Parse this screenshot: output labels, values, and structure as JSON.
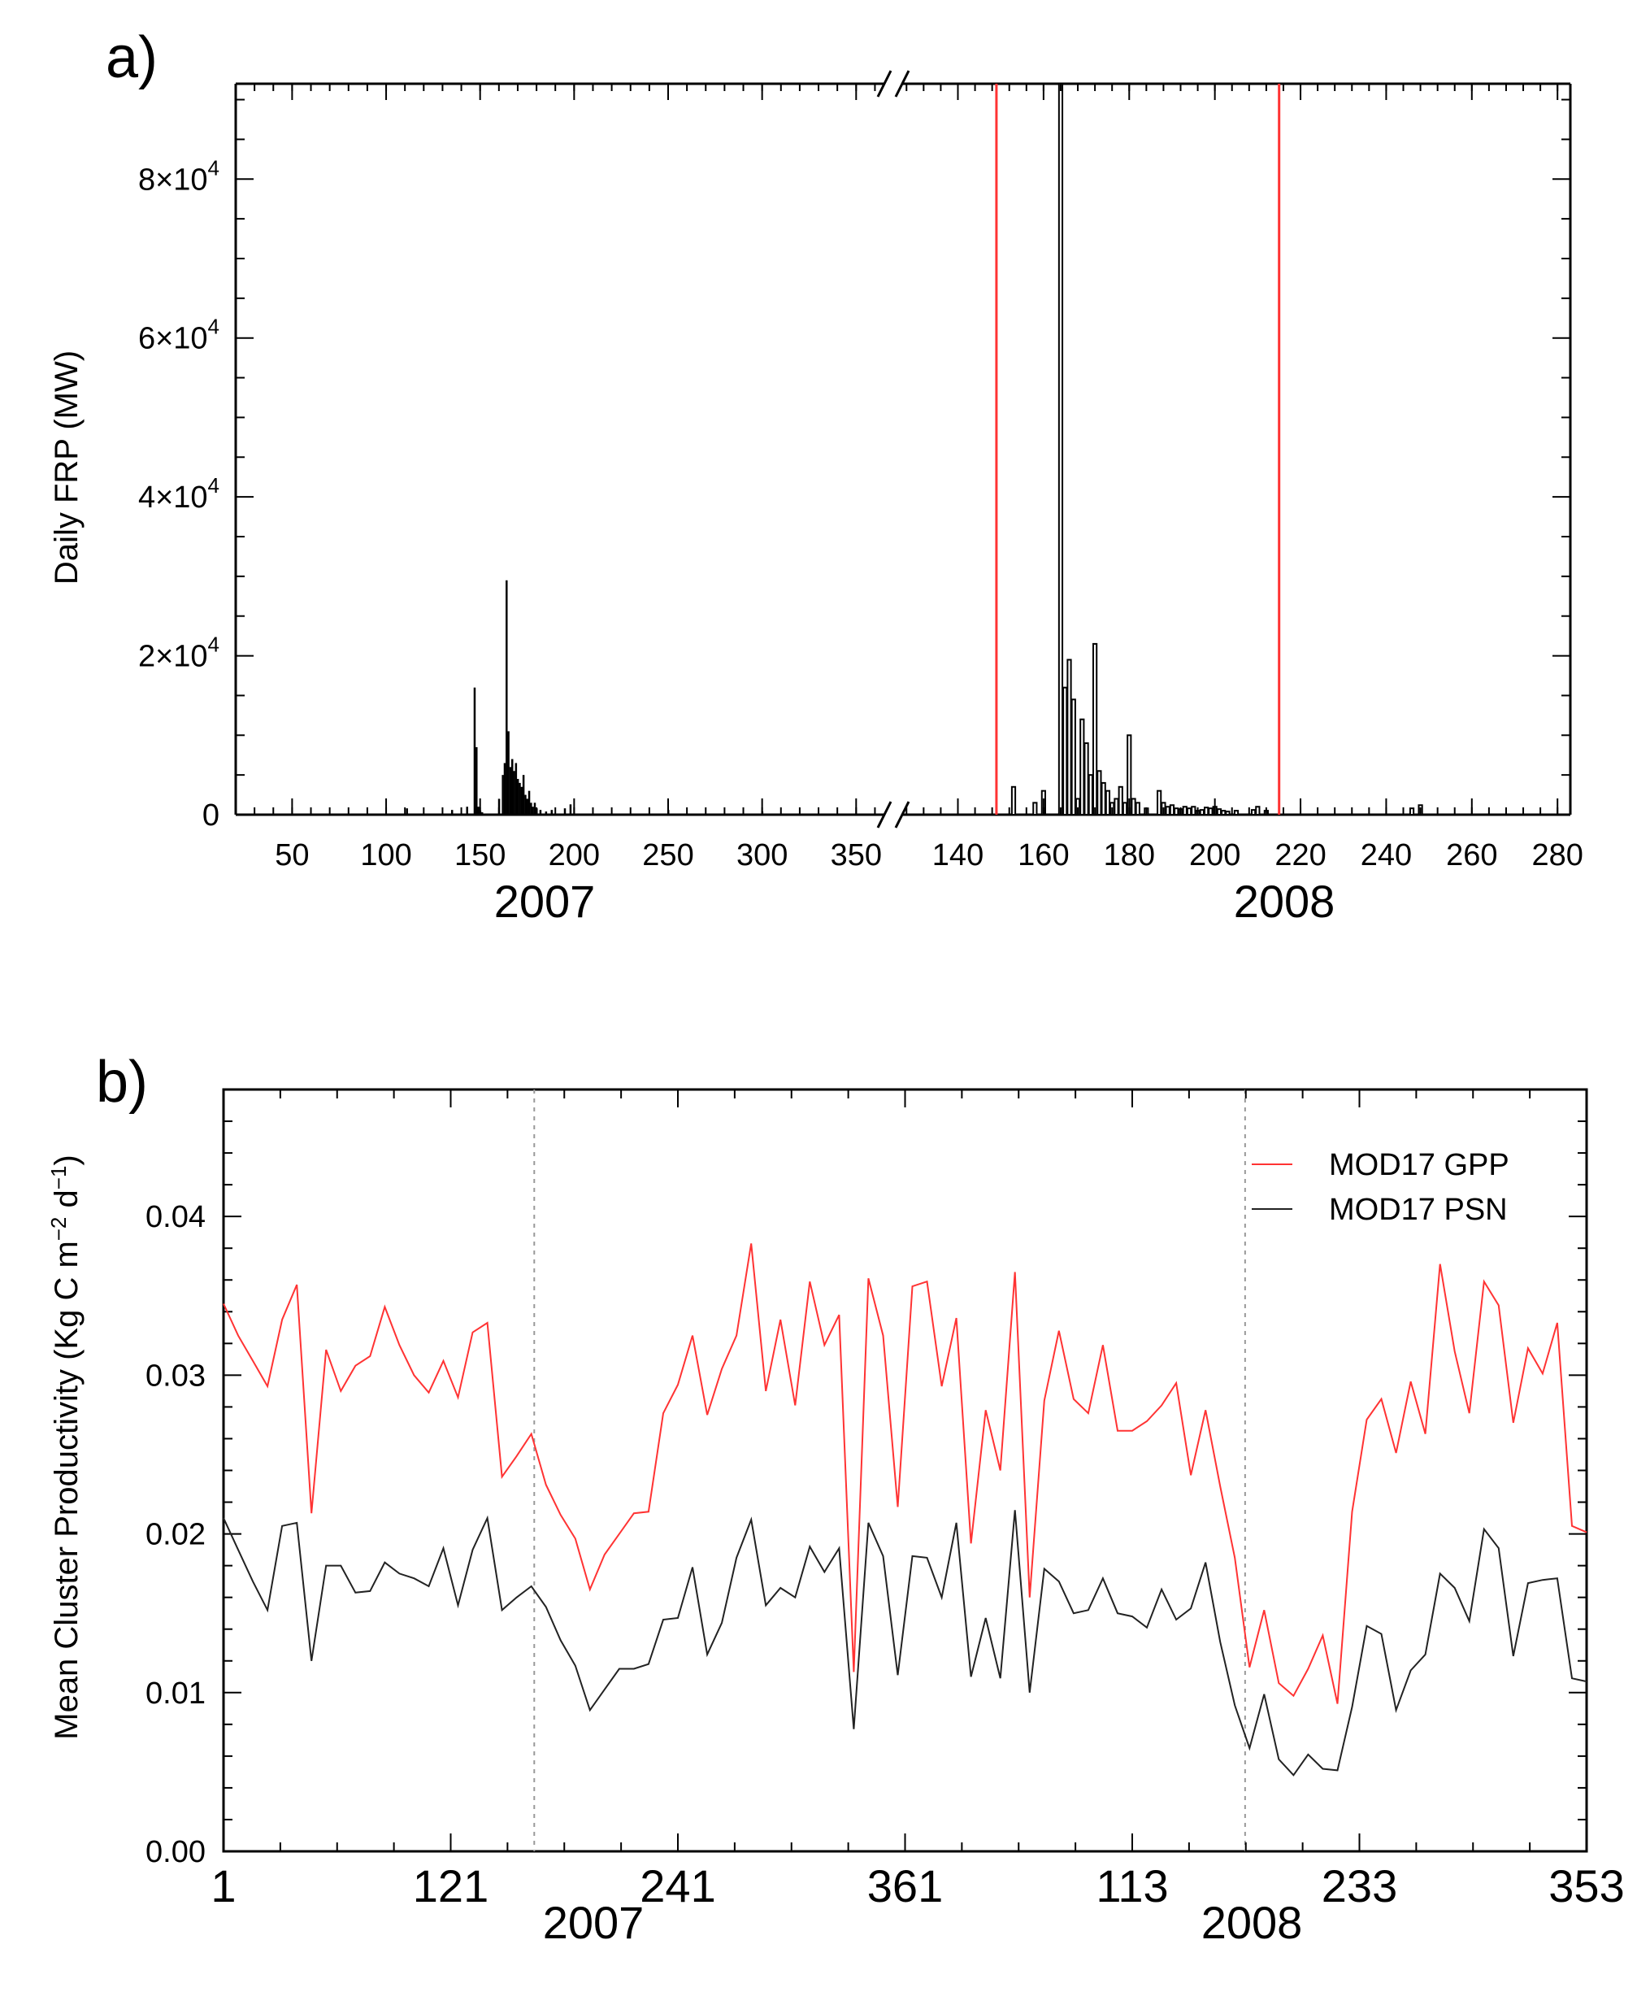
{
  "chart_data": [
    {
      "panel": "a)",
      "type": "bar",
      "ylabel": "Daily FRP (MW)",
      "ylim": [
        0,
        92000
      ],
      "yticks": [
        {
          "value": 0,
          "base": "0",
          "exp": ""
        },
        {
          "value": 20000,
          "base": "2×10",
          "exp": "4"
        },
        {
          "value": 40000,
          "base": "4×10",
          "exp": "4"
        },
        {
          "value": 60000,
          "base": "6×10",
          "exp": "4"
        },
        {
          "value": 80000,
          "base": "8×10",
          "exp": "4"
        }
      ],
      "segments": [
        {
          "year": "2007",
          "xlim": [
            20,
            365
          ],
          "xticks": [
            "50",
            "100",
            "150",
            "200",
            "250",
            "300",
            "350"
          ],
          "x": [
            111,
            135,
            143,
            147,
            148,
            149,
            150,
            151,
            160,
            162,
            163,
            164,
            165,
            166,
            167,
            168,
            169,
            170,
            171,
            172,
            173,
            174,
            175,
            176,
            177,
            178,
            179,
            180,
            182,
            185,
            188,
            195,
            198,
            250,
            300
          ],
          "values": [
            800,
            600,
            1000,
            16000,
            8500,
            1000,
            500,
            300,
            2000,
            5000,
            6500,
            29500,
            10500,
            6000,
            7000,
            5500,
            6500,
            4500,
            4000,
            3500,
            5000,
            2500,
            2000,
            3000,
            1500,
            1000,
            1500,
            800,
            600,
            400,
            600,
            800,
            1300,
            600,
            400
          ]
        },
        {
          "year": "2008",
          "xlim": [
            127,
            283
          ],
          "xticks": [
            "140",
            "160",
            "180",
            "200",
            "220",
            "240",
            "260",
            "280"
          ],
          "red_lines": [
            149,
            215
          ],
          "x": [
            153,
            158,
            160,
            164,
            165,
            166,
            167,
            168,
            169,
            170,
            171,
            172,
            173,
            174,
            175,
            176,
            177,
            178,
            179,
            180,
            181,
            182,
            184,
            187,
            188,
            189,
            190,
            191,
            192,
            193,
            194,
            195,
            196,
            197,
            198,
            199,
            200,
            201,
            202,
            203,
            205,
            209,
            210,
            212,
            246,
            248
          ],
          "values": [
            3500,
            1500,
            3000,
            92000,
            16000,
            19500,
            14500,
            2000,
            12000,
            9000,
            5000,
            21500,
            5500,
            4000,
            3000,
            1500,
            2000,
            3500,
            1500,
            10000,
            2000,
            1500,
            800,
            3000,
            1500,
            1000,
            1200,
            800,
            700,
            1000,
            800,
            1000,
            500,
            600,
            900,
            800,
            1000,
            700,
            500,
            400,
            500,
            600,
            1000,
            500,
            800,
            1200
          ]
        }
      ]
    },
    {
      "panel": "b)",
      "type": "line",
      "ylabel_main": "Mean Cluster Productivity (Kg C m",
      "ylabel_sup1": "−2",
      "ylabel_mid": " d",
      "ylabel_sup2": "−1",
      "ylabel_end": ")",
      "ylim": [
        0,
        0.048
      ],
      "yticks": [
        "0.00",
        "0.01",
        "0.02",
        "0.03",
        "0.04"
      ],
      "xticks": [
        "1",
        "121",
        "241",
        "361",
        "113",
        "233",
        "353"
      ],
      "years": [
        "2007",
        "2008"
      ],
      "dashed_lines_index": [
        21.2,
        69.7
      ],
      "series": [
        {
          "name": "MOD17 GPP",
          "color": "#ff3333",
          "values": [
            0.0345,
            0.0325,
            0.0309,
            0.0293,
            0.0335,
            0.0357,
            0.0213,
            0.0316,
            0.029,
            0.0306,
            0.0312,
            0.0343,
            0.0319,
            0.03,
            0.0289,
            0.0309,
            0.0286,
            0.0327,
            0.0333,
            0.0236,
            0.0249,
            0.0263,
            0.0231,
            0.0212,
            0.0197,
            0.0165,
            0.0187,
            0.02,
            0.0213,
            0.0214,
            0.0276,
            0.0294,
            0.0325,
            0.0275,
            0.0304,
            0.0325,
            0.0383,
            0.029,
            0.0335,
            0.0281,
            0.0359,
            0.0319,
            0.0338,
            0.0113,
            0.0361,
            0.0325,
            0.0217,
            0.0356,
            0.0359,
            0.0293,
            0.0336,
            0.0194,
            0.0278,
            0.024,
            0.0365,
            0.016,
            0.0284,
            0.0328,
            0.0285,
            0.0276,
            0.0319,
            0.0265,
            0.0265,
            0.0271,
            0.0281,
            0.0295,
            0.0237,
            0.0278,
            0.023,
            0.0185,
            0.0116,
            0.0152,
            0.0106,
            0.0098,
            0.0115,
            0.0136,
            0.0093,
            0.0214,
            0.0272,
            0.0285,
            0.0251,
            0.0296,
            0.0263,
            0.037,
            0.0315,
            0.0276,
            0.0359,
            0.0344,
            0.027,
            0.0317,
            0.0301,
            0.0333,
            0.0205,
            0.0201
          ]
        },
        {
          "name": "MOD17 PSN",
          "color": "#222222",
          "values": [
            0.021,
            0.019,
            0.017,
            0.0152,
            0.0205,
            0.0207,
            0.012,
            0.018,
            0.018,
            0.0163,
            0.0164,
            0.0182,
            0.0175,
            0.0172,
            0.0167,
            0.0191,
            0.0155,
            0.019,
            0.021,
            0.0152,
            0.016,
            0.0167,
            0.0154,
            0.0133,
            0.0117,
            0.0089,
            0.0102,
            0.0115,
            0.0115,
            0.0118,
            0.0146,
            0.0147,
            0.0179,
            0.0124,
            0.0144,
            0.0185,
            0.0209,
            0.0155,
            0.0166,
            0.016,
            0.0192,
            0.0176,
            0.0191,
            0.0077,
            0.0207,
            0.0186,
            0.0111,
            0.0186,
            0.0185,
            0.016,
            0.0207,
            0.011,
            0.0147,
            0.0109,
            0.0215,
            0.01,
            0.0178,
            0.017,
            0.015,
            0.0152,
            0.0172,
            0.015,
            0.0148,
            0.0141,
            0.0165,
            0.0146,
            0.0153,
            0.0182,
            0.0132,
            0.0092,
            0.0065,
            0.0099,
            0.0058,
            0.0048,
            0.0061,
            0.0052,
            0.0051,
            0.0091,
            0.0142,
            0.0137,
            0.0089,
            0.0114,
            0.0124,
            0.0175,
            0.0166,
            0.0145,
            0.0203,
            0.0191,
            0.0123,
            0.0169,
            0.0171,
            0.0172,
            0.0109,
            0.0107
          ]
        }
      ]
    }
  ]
}
